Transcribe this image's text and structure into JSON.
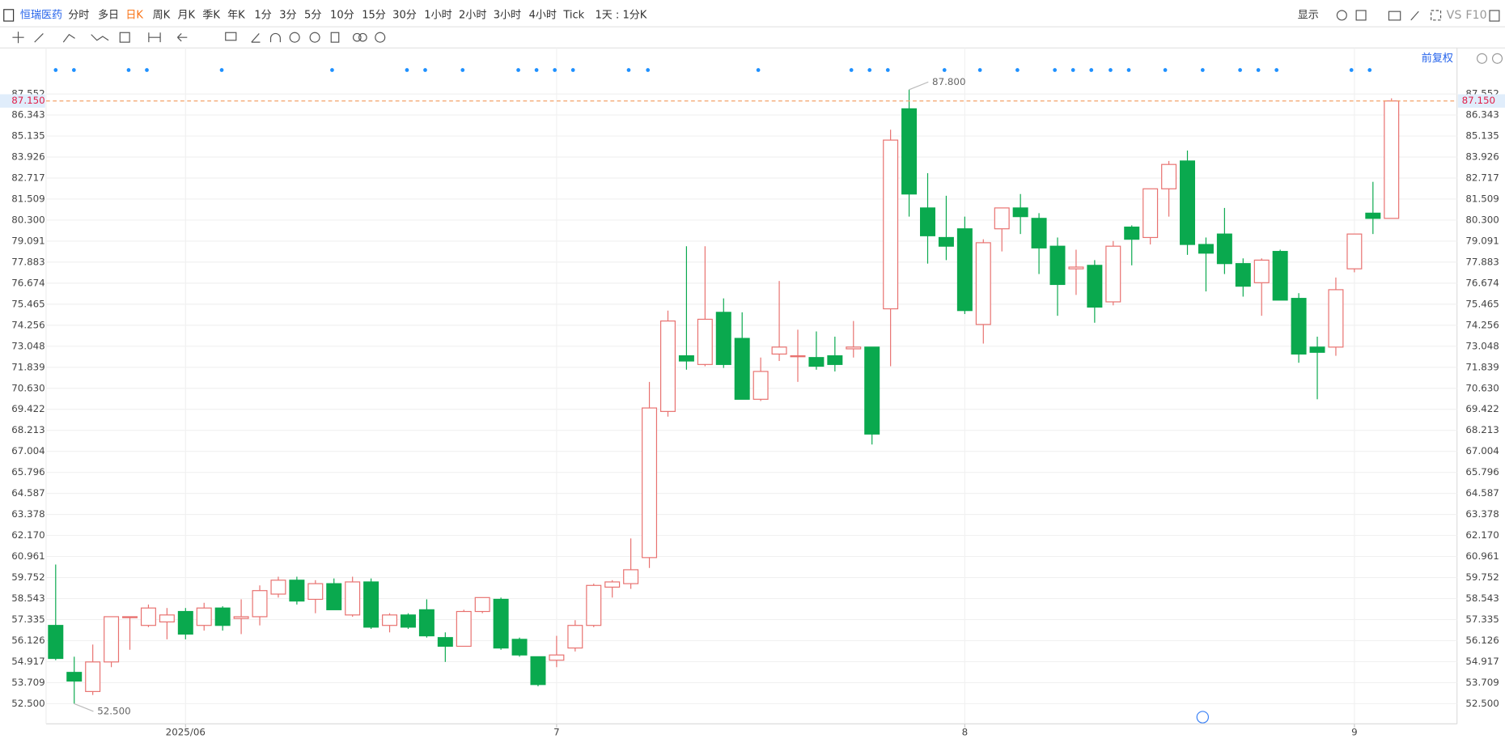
{
  "toolbar": {
    "symbol": "恒瑞医药",
    "periods": [
      "分时",
      "多日",
      "日K",
      "周K",
      "月K",
      "季K",
      "年K",
      "1分",
      "3分",
      "5分",
      "10分",
      "15分",
      "30分",
      "1小时",
      "2小时",
      "3小时",
      "4小时",
      "Tick",
      "1天 : 1分K"
    ],
    "active": "日K",
    "display": "显示",
    "vs": "VS",
    "f10": "F10",
    "adjust": "前复权"
  },
  "chart_data": {
    "type": "candlestick",
    "up_color": "#e8716f",
    "down_color": "#0aa94e",
    "categories": [
      null,
      null,
      null,
      null,
      null,
      null,
      null,
      "2025/06",
      null,
      null,
      null,
      null,
      null,
      null,
      null,
      null,
      null,
      null,
      null,
      null,
      null,
      null,
      null,
      null,
      null,
      null,
      null,
      "7",
      null,
      null,
      null,
      null,
      null,
      null,
      null,
      null,
      null,
      null,
      null,
      null,
      null,
      null,
      null,
      null,
      null,
      null,
      null,
      null,
      null,
      "8",
      null,
      null,
      null,
      null,
      null,
      null,
      null,
      null,
      null,
      null,
      null,
      null,
      null,
      null,
      null,
      null,
      null,
      null,
      null,
      null,
      "9",
      null,
      null
    ],
    "open": [
      57.0,
      54.3,
      53.2,
      54.9,
      57.5,
      57.0,
      57.2,
      57.8,
      57.0,
      58.0,
      57.4,
      57.5,
      58.8,
      59.6,
      58.5,
      59.4,
      57.6,
      59.5,
      57.0,
      57.6,
      57.9,
      56.3,
      55.8,
      57.8,
      58.5,
      56.2,
      55.2,
      55.0,
      55.7,
      57.0,
      59.2,
      59.4,
      60.9,
      69.3,
      72.5,
      72.0,
      75.0,
      73.5,
      70.0,
      72.6,
      72.5,
      72.4,
      72.5,
      72.9,
      73.0,
      75.2,
      86.7,
      81.0,
      79.3,
      79.8,
      74.3,
      79.8,
      81.0,
      80.4,
      78.8,
      77.5,
      77.7,
      75.6,
      79.9,
      79.3,
      82.1,
      83.7,
      78.9,
      79.5,
      77.8,
      76.7,
      78.5,
      75.8,
      73.0,
      73.0,
      77.5,
      80.7,
      80.4
    ],
    "high": [
      60.5,
      55.2,
      55.9,
      57.5,
      57.5,
      58.2,
      58.0,
      58.0,
      58.3,
      58.1,
      58.5,
      59.3,
      59.8,
      59.8,
      59.6,
      59.7,
      59.8,
      59.7,
      57.7,
      57.7,
      58.5,
      56.6,
      57.9,
      58.6,
      58.6,
      56.3,
      55.2,
      56.4,
      57.3,
      59.4,
      59.6,
      62.0,
      71.0,
      75.1,
      78.8,
      78.8,
      75.8,
      75.0,
      72.4,
      76.8,
      74.0,
      73.9,
      73.6,
      74.5,
      73.0,
      85.5,
      87.8,
      83.0,
      81.7,
      80.5,
      79.2,
      81.0,
      81.8,
      80.7,
      79.3,
      78.6,
      78.0,
      79.1,
      80.0,
      82.1,
      83.7,
      84.3,
      79.3,
      81.0,
      78.1,
      78.1,
      78.6,
      76.1,
      73.6,
      77.0,
      79.5,
      82.5,
      87.3
    ],
    "low": [
      55.0,
      52.5,
      53.0,
      54.6,
      55.6,
      56.9,
      56.2,
      56.2,
      56.7,
      56.7,
      56.5,
      57.0,
      58.6,
      58.2,
      57.7,
      57.9,
      57.5,
      56.8,
      56.6,
      56.8,
      56.3,
      54.9,
      55.8,
      57.7,
      55.6,
      55.2,
      53.5,
      54.6,
      55.5,
      56.9,
      58.6,
      59.1,
      60.3,
      69.0,
      71.7,
      71.9,
      71.8,
      70.0,
      69.9,
      72.2,
      71.0,
      71.7,
      71.6,
      72.4,
      67.4,
      71.9,
      80.5,
      77.8,
      78.0,
      74.9,
      73.2,
      78.5,
      79.5,
      77.2,
      74.8,
      76.0,
      74.4,
      75.4,
      77.7,
      78.9,
      80.5,
      78.3,
      76.2,
      77.2,
      75.9,
      74.8,
      75.7,
      72.1,
      70.0,
      72.5,
      77.3,
      79.5,
      80.4
    ],
    "close": [
      55.1,
      53.8,
      54.9,
      57.5,
      57.5,
      58.0,
      57.6,
      56.5,
      58.0,
      57.0,
      57.5,
      59.0,
      59.6,
      58.4,
      59.4,
      57.9,
      59.5,
      56.9,
      57.6,
      56.9,
      56.4,
      55.8,
      57.8,
      58.6,
      55.7,
      55.3,
      53.6,
      55.3,
      57.0,
      59.3,
      59.5,
      60.2,
      69.5,
      74.5,
      72.2,
      74.6,
      72.0,
      70.0,
      71.6,
      73.0,
      72.5,
      71.9,
      72.0,
      73.0,
      68.0,
      84.9,
      81.8,
      79.4,
      78.8,
      75.1,
      79.0,
      81.0,
      80.5,
      78.7,
      76.6,
      77.6,
      75.3,
      78.8,
      79.2,
      82.1,
      83.5,
      78.9,
      78.4,
      77.8,
      76.5,
      78.0,
      75.7,
      72.6,
      72.7,
      76.3,
      79.5,
      80.4,
      87.15
    ],
    "ylim": [
      51.34,
      88.1
    ],
    "yticks": [
      {
        "value": 52.5,
        "label": "52.500"
      },
      {
        "value": 53.709,
        "label": "53.709"
      },
      {
        "value": 54.917,
        "label": "54.917"
      },
      {
        "value": 56.126,
        "label": "56.126"
      },
      {
        "value": 57.335,
        "label": "57.335"
      },
      {
        "value": 58.543,
        "label": "58.543"
      },
      {
        "value": 59.752,
        "label": "59.752"
      },
      {
        "value": 60.961,
        "label": "60.961"
      },
      {
        "value": 62.17,
        "label": "62.170"
      },
      {
        "value": 63.378,
        "label": "63.378"
      },
      {
        "value": 64.587,
        "label": "64.587"
      },
      {
        "value": 65.796,
        "label": "65.796"
      },
      {
        "value": 67.004,
        "label": "67.004"
      },
      {
        "value": 68.213,
        "label": "68.213"
      },
      {
        "value": 69.422,
        "label": "69.422"
      },
      {
        "value": 70.63,
        "label": "70.630"
      },
      {
        "value": 71.839,
        "label": "71.839"
      },
      {
        "value": 73.048,
        "label": "73.048"
      },
      {
        "value": 74.256,
        "label": "74.256"
      },
      {
        "value": 75.465,
        "label": "75.465"
      },
      {
        "value": 76.674,
        "label": "76.674"
      },
      {
        "value": 77.883,
        "label": "77.883"
      },
      {
        "value": 79.091,
        "label": "79.091"
      },
      {
        "value": 80.3,
        "label": "80.300"
      },
      {
        "value": 81.509,
        "label": "81.509"
      },
      {
        "value": 82.717,
        "label": "82.717"
      },
      {
        "value": 83.926,
        "label": "83.926"
      },
      {
        "value": 85.135,
        "label": "85.135"
      },
      {
        "value": 86.343,
        "label": "86.343"
      },
      {
        "value": 87.552,
        "label": "87.552"
      }
    ],
    "max_marker": {
      "value": 87.8,
      "label": "87.800"
    },
    "min_marker": {
      "value": 52.5,
      "label": "52.500"
    },
    "last_price": {
      "value": 87.15,
      "label": "87.150"
    },
    "grid": true
  }
}
